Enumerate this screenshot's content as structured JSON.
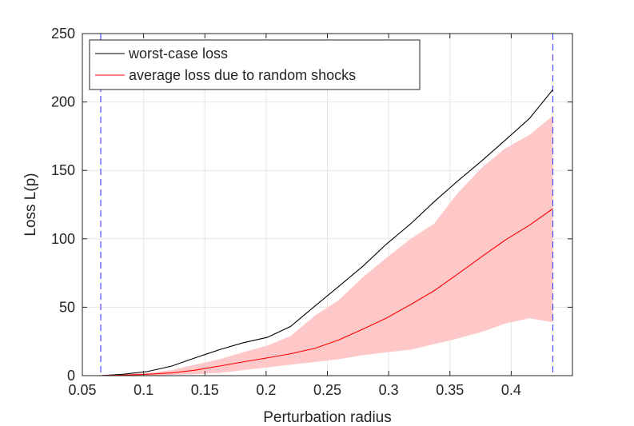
{
  "chart_data": {
    "type": "line",
    "xlabel": "Perturbation radius",
    "ylabel": "Loss L(p)",
    "xlim": [
      0.05,
      0.45
    ],
    "ylim": [
      0,
      250
    ],
    "xticks": [
      "0.05",
      "0.1",
      "0.15",
      "0.2",
      "0.25",
      "0.3",
      "0.35",
      "0.4"
    ],
    "yticks": [
      "0",
      "50",
      "100",
      "150",
      "200",
      "250"
    ],
    "grid": true,
    "legend_position": "top-left",
    "series": [
      {
        "name": "worst-case loss",
        "color": "#000000",
        "x": [
          0.065,
          0.083,
          0.103,
          0.123,
          0.142,
          0.162,
          0.181,
          0.201,
          0.22,
          0.24,
          0.259,
          0.279,
          0.298,
          0.318,
          0.337,
          0.356,
          0.376,
          0.395,
          0.415,
          0.434
        ],
        "y": [
          0,
          1,
          3,
          7,
          13,
          19,
          24,
          28,
          36,
          51,
          65,
          80,
          96,
          111,
          127,
          142,
          157,
          172,
          188,
          209
        ]
      },
      {
        "name": "average loss due to random shocks",
        "color": "#ff0000",
        "x": [
          0.065,
          0.083,
          0.103,
          0.123,
          0.142,
          0.162,
          0.181,
          0.201,
          0.22,
          0.24,
          0.259,
          0.279,
          0.298,
          0.318,
          0.337,
          0.356,
          0.376,
          0.395,
          0.415,
          0.434
        ],
        "y": [
          0,
          0.3,
          1,
          2,
          4,
          7,
          10,
          13,
          16,
          20,
          26,
          34,
          42,
          52,
          62,
          74,
          87,
          99,
          110,
          122
        ]
      }
    ],
    "band": {
      "color": "#ffc8c8",
      "x": [
        0.065,
        0.083,
        0.103,
        0.123,
        0.142,
        0.162,
        0.181,
        0.201,
        0.22,
        0.24,
        0.259,
        0.279,
        0.298,
        0.318,
        0.337,
        0.356,
        0.376,
        0.395,
        0.415,
        0.434
      ],
      "upper": [
        0,
        1,
        2,
        4,
        8,
        12,
        17,
        22,
        29,
        44,
        55,
        72,
        86,
        100,
        111,
        133,
        152,
        166,
        176,
        190
      ],
      "lower": [
        0,
        0,
        0,
        0.5,
        1,
        2,
        4,
        6,
        8,
        10,
        12,
        15,
        17,
        19,
        23,
        27,
        32,
        38,
        42,
        39
      ]
    },
    "vertical_lines": {
      "color": "#4a4aff",
      "style": "dashed",
      "x": [
        0.065,
        0.434
      ]
    }
  }
}
